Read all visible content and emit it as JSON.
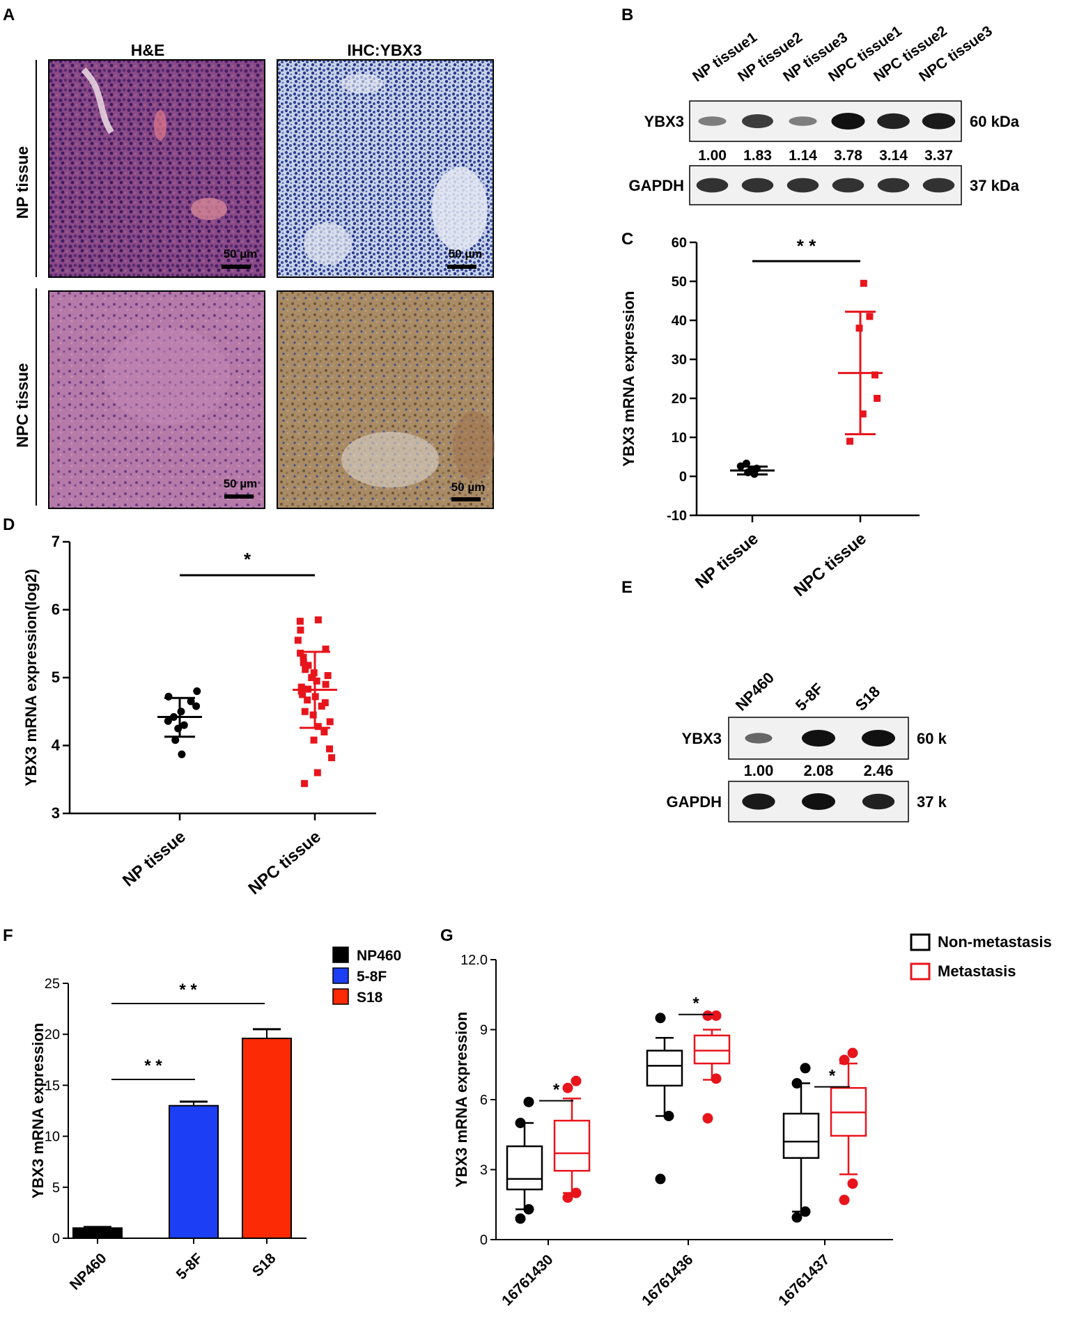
{
  "panels": {
    "A": {
      "letter": "A",
      "columns": [
        "H&E",
        "IHC:YBX3"
      ],
      "rows": [
        "NP tissue",
        "NPC tissue"
      ],
      "scale_bar": "50 µm"
    },
    "B": {
      "letter": "B",
      "lanes": [
        "NP tissue1",
        "NP tissue2",
        "NP tissue3",
        "NPC tissue1",
        "NPC tissue2",
        "NPC tissue3"
      ],
      "blots": [
        {
          "protein": "YBX3",
          "size": "60 kDa",
          "intensity": [
            0.35,
            0.75,
            0.35,
            1.0,
            0.9,
            0.95
          ]
        },
        {
          "protein": "GAPDH",
          "size": "37 kDa",
          "intensity": [
            0.8,
            0.8,
            0.8,
            0.8,
            0.8,
            0.8
          ]
        }
      ],
      "quant": [
        "1.00",
        "1.83",
        "1.14",
        "3.78",
        "3.14",
        "3.37"
      ]
    },
    "C": {
      "letter": "C",
      "significance": "* *"
    },
    "D": {
      "letter": "D",
      "significance": "*"
    },
    "E": {
      "letter": "E",
      "lanes": [
        "NP460",
        "5-8F",
        "S18"
      ],
      "blots": [
        {
          "protein": "YBX3",
          "size": "60 kDa",
          "intensity": [
            0.45,
            1.0,
            1.0
          ]
        },
        {
          "protein": "GAPDH",
          "size": "37 kDa",
          "intensity": [
            0.95,
            1.0,
            0.9
          ]
        }
      ],
      "quant": [
        "1.00",
        "2.08",
        "2.46"
      ]
    },
    "F": {
      "letter": "F",
      "sig_top": "* *",
      "sig_low": "* *"
    },
    "G": {
      "letter": "G",
      "legend": [
        "Non-metastasis",
        "Metastasis"
      ],
      "significance": [
        "*",
        "*",
        "*"
      ]
    }
  },
  "chart_data": [
    {
      "panel": "C",
      "type": "scatter",
      "ylabel": "YBX3 mRNA expression",
      "categories": [
        "NP tissue",
        "NPC tissue"
      ],
      "ylim": [
        -10,
        60
      ],
      "yticks": [
        -10,
        0,
        10,
        20,
        30,
        40,
        50,
        60
      ],
      "colors": [
        "#000000",
        "#e8141c"
      ],
      "series": [
        {
          "points": [
            0.6,
            1.0,
            1.5,
            2.0,
            2.6,
            3.3
          ],
          "mean": 1.5,
          "sd_low": 0.5,
          "sd_high": 2.5
        },
        {
          "points": [
            9,
            16,
            20,
            26,
            38,
            41,
            49.5
          ],
          "mean": 26.5,
          "sd_low": 10.8,
          "sd_high": 42.2
        }
      ]
    },
    {
      "panel": "D",
      "type": "scatter",
      "ylabel": "YBX3 mRNA expression(log2)",
      "categories": [
        "NP tissue",
        "NPC tissue"
      ],
      "ylim": [
        3,
        7
      ],
      "yticks": [
        3,
        4,
        5,
        6,
        7
      ],
      "colors": [
        "#000000",
        "#e8141c"
      ],
      "series": [
        {
          "points": [
            3.87,
            4.08,
            4.25,
            4.3,
            4.36,
            4.42,
            4.5,
            4.58,
            4.65,
            4.72,
            4.8
          ],
          "mean": 4.42,
          "sd_low": 4.13,
          "sd_high": 4.7
        },
        {
          "points": [
            3.44,
            3.6,
            3.82,
            3.95,
            4.08,
            4.2,
            4.28,
            4.35,
            4.45,
            4.5,
            4.58,
            4.63,
            4.67,
            4.72,
            4.75,
            4.8,
            4.83,
            4.86,
            4.9,
            4.95,
            5.0,
            5.03,
            5.07,
            5.12,
            5.18,
            5.22,
            5.3,
            5.36,
            5.42,
            5.55,
            5.7,
            5.83,
            5.85
          ],
          "mean": 4.82,
          "sd_low": 4.26,
          "sd_high": 5.38
        }
      ]
    },
    {
      "panel": "F",
      "type": "bar",
      "ylabel": "YBX3 mRNA expression",
      "categories": [
        "NP460",
        "5-8F",
        "S18"
      ],
      "values": [
        1.0,
        13.0,
        19.6
      ],
      "errors": [
        0.1,
        0.4,
        0.9
      ],
      "ylim": [
        0,
        25
      ],
      "yticks": [
        0,
        5,
        10,
        15,
        20,
        25
      ],
      "colors": [
        "#000000",
        "#1c3ff5",
        "#fc2a05"
      ],
      "legend": [
        "NP460",
        "5-8F",
        "S18"
      ]
    },
    {
      "panel": "G",
      "type": "box",
      "ylabel": "YBX3 mRNA expression",
      "categories": [
        "16761430",
        "16761436",
        "16761437"
      ],
      "ylim": [
        0,
        12
      ],
      "yticks": [
        0,
        3,
        6,
        9,
        12
      ],
      "ytick_labels": [
        "0",
        "3",
        "6",
        "9",
        "12.0"
      ],
      "series": [
        {
          "name": "Non-metastasis",
          "color": "#000000",
          "boxes": [
            {
              "min": 1.3,
              "q1": 2.15,
              "median": 2.6,
              "q3": 4.0,
              "max": 5.0,
              "outliers": [
                0.9,
                1.3,
                5.0,
                5.9
              ]
            },
            {
              "min": 5.3,
              "q1": 6.6,
              "median": 7.45,
              "q3": 8.1,
              "max": 8.65,
              "outliers": [
                2.6,
                5.3,
                9.5
              ]
            },
            {
              "min": 1.2,
              "q1": 3.5,
              "median": 4.2,
              "q3": 5.4,
              "max": 6.7,
              "outliers": [
                0.95,
                1.2,
                6.7,
                7.35
              ]
            }
          ]
        },
        {
          "name": "Metastasis",
          "color": "#e8141c",
          "boxes": [
            {
              "min": 2.0,
              "q1": 2.95,
              "median": 3.7,
              "q3": 5.1,
              "max": 6.05,
              "outliers": [
                1.8,
                2.0,
                6.5,
                6.8
              ]
            },
            {
              "min": 6.85,
              "q1": 7.55,
              "median": 8.1,
              "q3": 8.75,
              "max": 9.0,
              "outliers": [
                5.2,
                6.9,
                9.6,
                9.6
              ]
            },
            {
              "min": 2.8,
              "q1": 4.45,
              "median": 5.45,
              "q3": 6.5,
              "max": 7.55,
              "outliers": [
                1.7,
                2.4,
                7.7,
                8.0
              ]
            }
          ]
        }
      ]
    }
  ]
}
